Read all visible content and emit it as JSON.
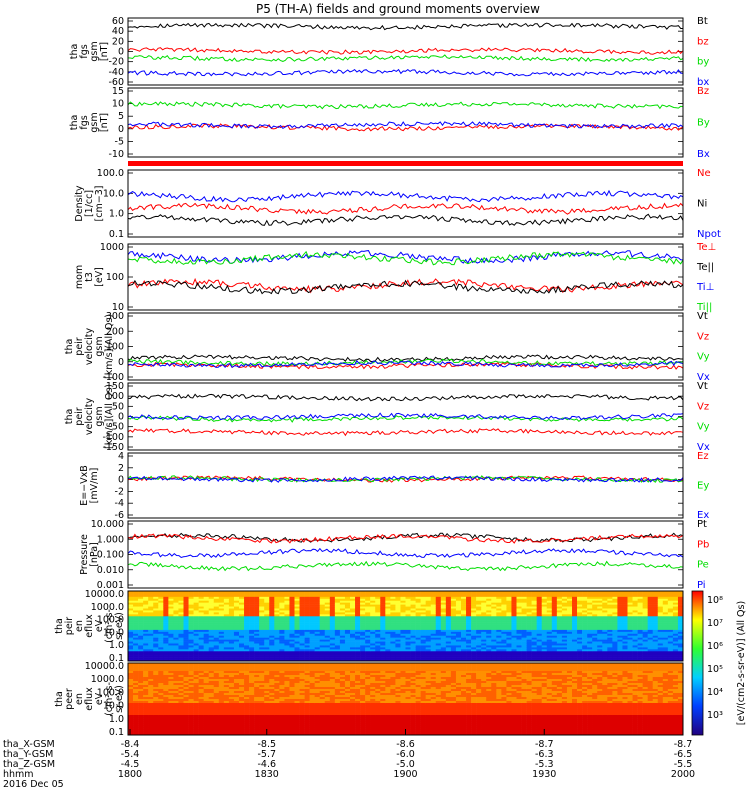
{
  "title": "P5 (TH-A) fields and ground moments overview",
  "colors": {
    "black": "#000000",
    "red": "#ff0000",
    "green": "#00dd00",
    "blue": "#0000ff"
  },
  "chart_data": [
    {
      "type": "line",
      "panel": "fgs_gsm_1",
      "ylabel": [
        "tha",
        "fgs",
        "gsm",
        "[nT]"
      ],
      "yticks": [
        "60",
        "40",
        "20",
        "0",
        "-20",
        "-40",
        "-60"
      ],
      "ylim": [
        -60,
        60
      ],
      "series": [
        {
          "name": "Bt",
          "color": "#000000",
          "level": 45
        },
        {
          "name": "bz",
          "color": "#ff0000",
          "level": 1
        },
        {
          "name": "by",
          "color": "#00dd00",
          "level": -12
        },
        {
          "name": "bx",
          "color": "#0000ff",
          "level": -38
        }
      ]
    },
    {
      "type": "line",
      "panel": "fgs_gsm_2",
      "ylabel": [
        "tha",
        "fgs",
        "gsm",
        "[nT]"
      ],
      "yticks": [
        "15",
        "10",
        "5",
        "0",
        "-5",
        "-10"
      ],
      "ylim": [
        -13,
        15
      ],
      "series": [
        {
          "name": "Bz",
          "color": "#ff0000",
          "level": -1
        },
        {
          "name": "By",
          "color": "#00dd00",
          "level": 8
        },
        {
          "name": "Bx",
          "color": "#0000ff",
          "level": 0
        }
      ]
    },
    {
      "type": "line",
      "panel": "density",
      "ylabel": [
        "Density",
        "[1/cc]",
        "[cm−3]"
      ],
      "yticks": [
        "100.0",
        "10.0",
        "1.0",
        "0.1"
      ],
      "ylim": [
        0.1,
        200
      ],
      "log": true,
      "series": [
        {
          "name": "Ne",
          "color": "#ff0000",
          "level": 2.5
        },
        {
          "name": "Ni",
          "color": "#000000",
          "level": 0.7
        },
        {
          "name": "Npot",
          "color": "#0000ff",
          "level": 10
        }
      ]
    },
    {
      "type": "line",
      "panel": "mom_t3",
      "ylabel": [
        "mom",
        "t3",
        "[eV]"
      ],
      "yticks": [
        "1000",
        "100",
        "10"
      ],
      "ylim": [
        10,
        5000
      ],
      "log": true,
      "series": [
        {
          "name": "Te⊥",
          "color": "#ff0000",
          "level": 100
        },
        {
          "name": "Te||",
          "color": "#000000",
          "level": 85
        },
        {
          "name": "Ti⊥",
          "color": "#0000ff",
          "level": 1500
        },
        {
          "name": "Ti||",
          "color": "#00dd00",
          "level": 1300
        }
      ]
    },
    {
      "type": "line",
      "panel": "peir_velocity_1",
      "ylabel": [
        "tha",
        "peir",
        "velocity",
        "gsm",
        "[km/s](All Qs)"
      ],
      "yticks": [
        "300",
        "200",
        "100",
        "0",
        "-100"
      ],
      "ylim": [
        -100,
        300
      ],
      "series": [
        {
          "name": "Vt",
          "color": "#000000",
          "level": 30
        },
        {
          "name": "Vz",
          "color": "#ff0000",
          "level": -15
        },
        {
          "name": "Vy",
          "color": "#00dd00",
          "level": 5
        },
        {
          "name": "Vx",
          "color": "#0000ff",
          "level": -5
        }
      ]
    },
    {
      "type": "line",
      "panel": "peir_velocity_2",
      "ylabel": [
        "tha",
        "peir",
        "velocity",
        "gsm",
        "[km/s](All Qs)"
      ],
      "yticks": [
        "150",
        "100",
        "50",
        "0",
        "-50",
        "-100",
        "-150"
      ],
      "ylim": [
        -150,
        150
      ],
      "series": [
        {
          "name": "Vt",
          "color": "#000000",
          "level": 85
        },
        {
          "name": "Vz",
          "color": "#ff0000",
          "level": -70
        },
        {
          "name": "Vy",
          "color": "#00dd00",
          "level": -10
        },
        {
          "name": "Vx",
          "color": "#0000ff",
          "level": 0
        }
      ]
    },
    {
      "type": "line",
      "panel": "e_field",
      "ylabel": [
        "E=−VxB",
        "[mV/m]"
      ],
      "yticks": [
        "4",
        "2",
        "0",
        "-2",
        "-4",
        "-6"
      ],
      "ylim": [
        -6,
        4
      ],
      "series": [
        {
          "name": "Ez",
          "color": "#ff0000",
          "level": 0
        },
        {
          "name": "Ey",
          "color": "#00dd00",
          "level": 0
        },
        {
          "name": "Ex",
          "color": "#0000ff",
          "level": 0
        }
      ]
    },
    {
      "type": "line",
      "panel": "pressure",
      "ylabel": [
        "Pressure",
        "[nPa]"
      ],
      "yticks": [
        "10.000",
        "1.000",
        "0.100",
        "0.010",
        "0.001"
      ],
      "ylim": [
        0.001,
        10
      ],
      "log": true,
      "series": [
        {
          "name": "Pt",
          "color": "#000000",
          "level": 1.0
        },
        {
          "name": "Pb",
          "color": "#ff0000",
          "level": 0.9
        },
        {
          "name": "Pe",
          "color": "#00dd00",
          "level": 0.02
        },
        {
          "name": "Pi",
          "color": "#0000ff",
          "level": 0.12
        }
      ]
    },
    {
      "type": "heatmap",
      "panel": "peir_en_eflux",
      "ylabel": [
        "tha",
        "peir",
        "en",
        "eflux",
        "eV",
        "(cm²-s-",
        "sr-eV)"
      ],
      "yticks": [
        "10000.0",
        "1000.0",
        "100.0",
        "10.0",
        "1.0",
        "0.1"
      ]
    },
    {
      "type": "heatmap",
      "panel": "peer_en_eflux",
      "ylabel": [
        "tha",
        "peer",
        "en",
        "eflux",
        "eV",
        "(cm²-s-",
        "sr-eV)"
      ],
      "yticks": [
        "10000.0",
        "1000.0",
        "100.0",
        "10.0",
        "1.0",
        "0.1"
      ]
    }
  ],
  "colorbar": {
    "labels": [
      "10⁸",
      "10⁷",
      "10⁶",
      "10⁵",
      "10⁴",
      "10³"
    ],
    "label": "[eV/(cm2-s-sr-eV)] (All Qs)"
  },
  "xaxis": {
    "rows": [
      {
        "name": "tha_X-GSM",
        "values": [
          "-8.4",
          "-8.5",
          "-8.6",
          "-8.7",
          "-8.7"
        ]
      },
      {
        "name": "tha_Y-GSM",
        "values": [
          "-5.4",
          "-5.7",
          "-6.0",
          "-6.3",
          "-6.5"
        ]
      },
      {
        "name": "tha_Z-GSM",
        "values": [
          "-4.5",
          "-4.6",
          "-5.0",
          "-5.3",
          "-5.5"
        ]
      },
      {
        "name": "hhmm",
        "values": [
          "1800",
          "1830",
          "1900",
          "1930",
          "2000"
        ]
      }
    ],
    "date": "2016 Dec 05"
  }
}
